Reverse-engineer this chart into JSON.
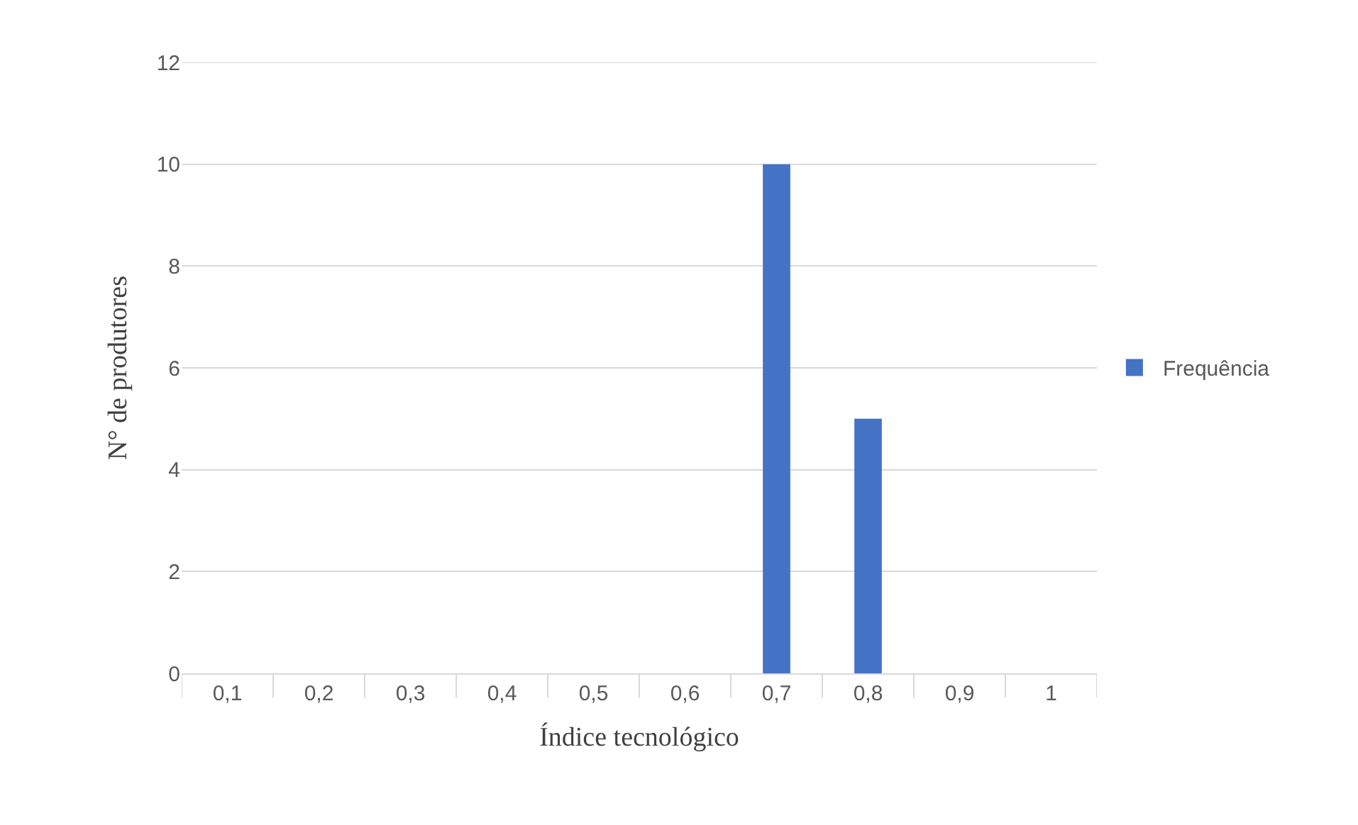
{
  "chart_data": {
    "type": "bar",
    "xlabel": "Índice tecnológico",
    "ylabel": "N° de produtores",
    "categories": [
      "0,1",
      "0,2",
      "0,3",
      "0,4",
      "0,5",
      "0,6",
      "0,7",
      "0,8",
      "0,9",
      "1"
    ],
    "series": [
      {
        "name": "Frequência",
        "color": "#4472c4",
        "values": [
          0,
          0,
          0,
          0,
          0,
          0,
          10,
          5,
          0,
          0
        ]
      }
    ],
    "ylim": [
      0,
      12
    ],
    "yticks": [
      0,
      2,
      4,
      6,
      8,
      10,
      12
    ],
    "grid": "y",
    "legend": "right"
  }
}
